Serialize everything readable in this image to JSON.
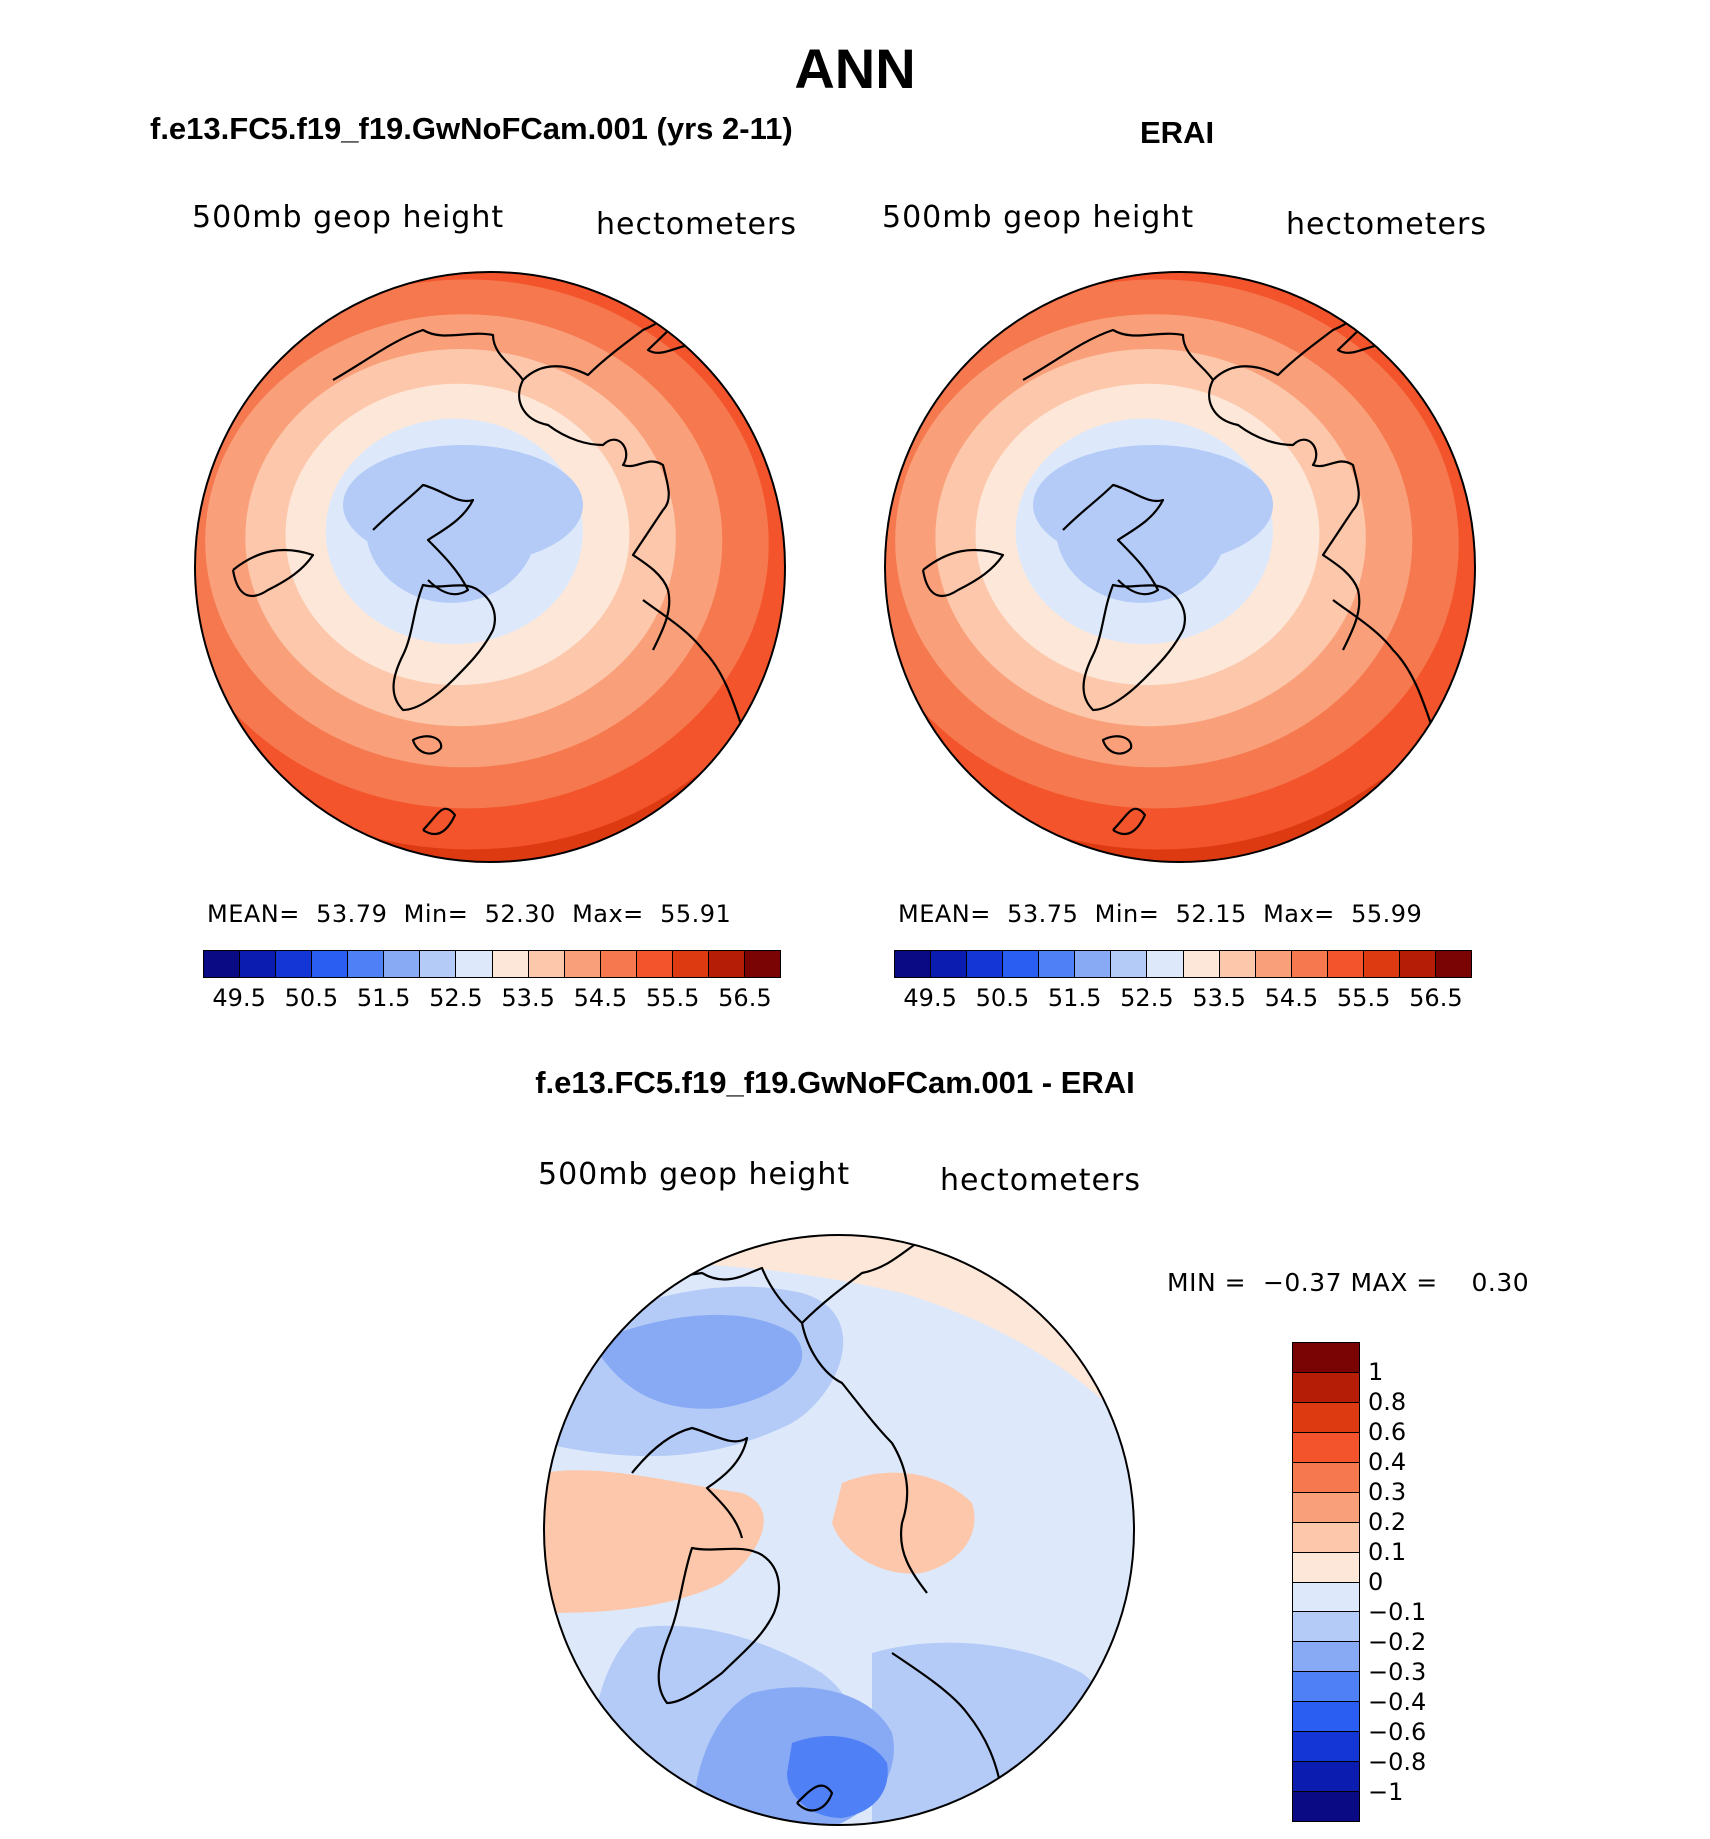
{
  "figure": {
    "title": "ANN"
  },
  "chart_data": [
    {
      "type": "heatmap",
      "projection": "north-polar-stereographic",
      "title": "f.e13.FC5.f19_f19.GwNoFCam.001 (yrs 2-11)",
      "variable": "500mb geop height",
      "units": "hectometers",
      "stats": {
        "mean_label": "MEAN=",
        "mean": "53.79",
        "min_label": "Min=",
        "min": "52.30",
        "max_label": "Max=",
        "max": "55.91"
      },
      "levels": [
        "49.5",
        "50.5",
        "51.5",
        "52.5",
        "53.5",
        "54.5",
        "55.5",
        "56.5"
      ],
      "colors": [
        "#0a0a84",
        "#0b1cb0",
        "#1436d6",
        "#2a5ef2",
        "#4f80f6",
        "#88aaf5",
        "#b4cbf7",
        "#dde9fb",
        "#fde7d8",
        "#fcc7aa",
        "#f9a07a",
        "#f6784e",
        "#f3542b",
        "#de3a12",
        "#b51d06",
        "#7a0303"
      ],
      "field_levels": [
        52.3,
        52.8,
        53.3,
        53.8,
        54.3,
        54.8,
        55.3,
        55.9
      ],
      "field_colors": [
        "#b4cbf7",
        "#dde9fb",
        "#fde7d8",
        "#fcc7aa",
        "#f9a07a",
        "#f6784e",
        "#f3542b",
        "#de3a12"
      ]
    },
    {
      "type": "heatmap",
      "projection": "north-polar-stereographic",
      "title": "ERAI",
      "variable": "500mb geop height",
      "units": "hectometers",
      "stats": {
        "mean_label": "MEAN=",
        "mean": "53.75",
        "min_label": "Min=",
        "min": "52.15",
        "max_label": "Max=",
        "max": "55.99"
      },
      "levels": [
        "49.5",
        "50.5",
        "51.5",
        "52.5",
        "53.5",
        "54.5",
        "55.5",
        "56.5"
      ],
      "colors": [
        "#0a0a84",
        "#0b1cb0",
        "#1436d6",
        "#2a5ef2",
        "#4f80f6",
        "#88aaf5",
        "#b4cbf7",
        "#dde9fb",
        "#fde7d8",
        "#fcc7aa",
        "#f9a07a",
        "#f6784e",
        "#f3542b",
        "#de3a12",
        "#b51d06",
        "#7a0303"
      ],
      "field_levels": [
        52.15,
        52.7,
        53.2,
        53.7,
        54.2,
        54.7,
        55.2,
        55.99
      ],
      "field_colors": [
        "#b4cbf7",
        "#dde9fb",
        "#fde7d8",
        "#fcc7aa",
        "#f9a07a",
        "#f6784e",
        "#f3542b",
        "#de3a12"
      ]
    },
    {
      "type": "heatmap",
      "projection": "north-polar-stereographic",
      "title": "f.e13.FC5.f19_f19.GwNoFCam.001 - ERAI",
      "variable": "500mb geop height",
      "units": "hectometers",
      "stats": {
        "min_label": "MIN =",
        "min": "−0.37",
        "max_label": "MAX =",
        "max": "0.30"
      },
      "levels": [
        "1",
        "0.8",
        "0.6",
        "0.4",
        "0.3",
        "0.2",
        "0.1",
        "0",
        "−0.1",
        "−0.2",
        "−0.3",
        "−0.4",
        "−0.6",
        "−0.8",
        "−1"
      ],
      "colors": [
        "#7a0303",
        "#b51d06",
        "#de3a12",
        "#f3542b",
        "#f6784e",
        "#f9a07a",
        "#fcc7aa",
        "#fde7d8",
        "#dde9fb",
        "#b4cbf7",
        "#88aaf5",
        "#4f80f6",
        "#2a5ef2",
        "#1436d6",
        "#0b1cb0",
        "#0a0a84"
      ]
    }
  ]
}
